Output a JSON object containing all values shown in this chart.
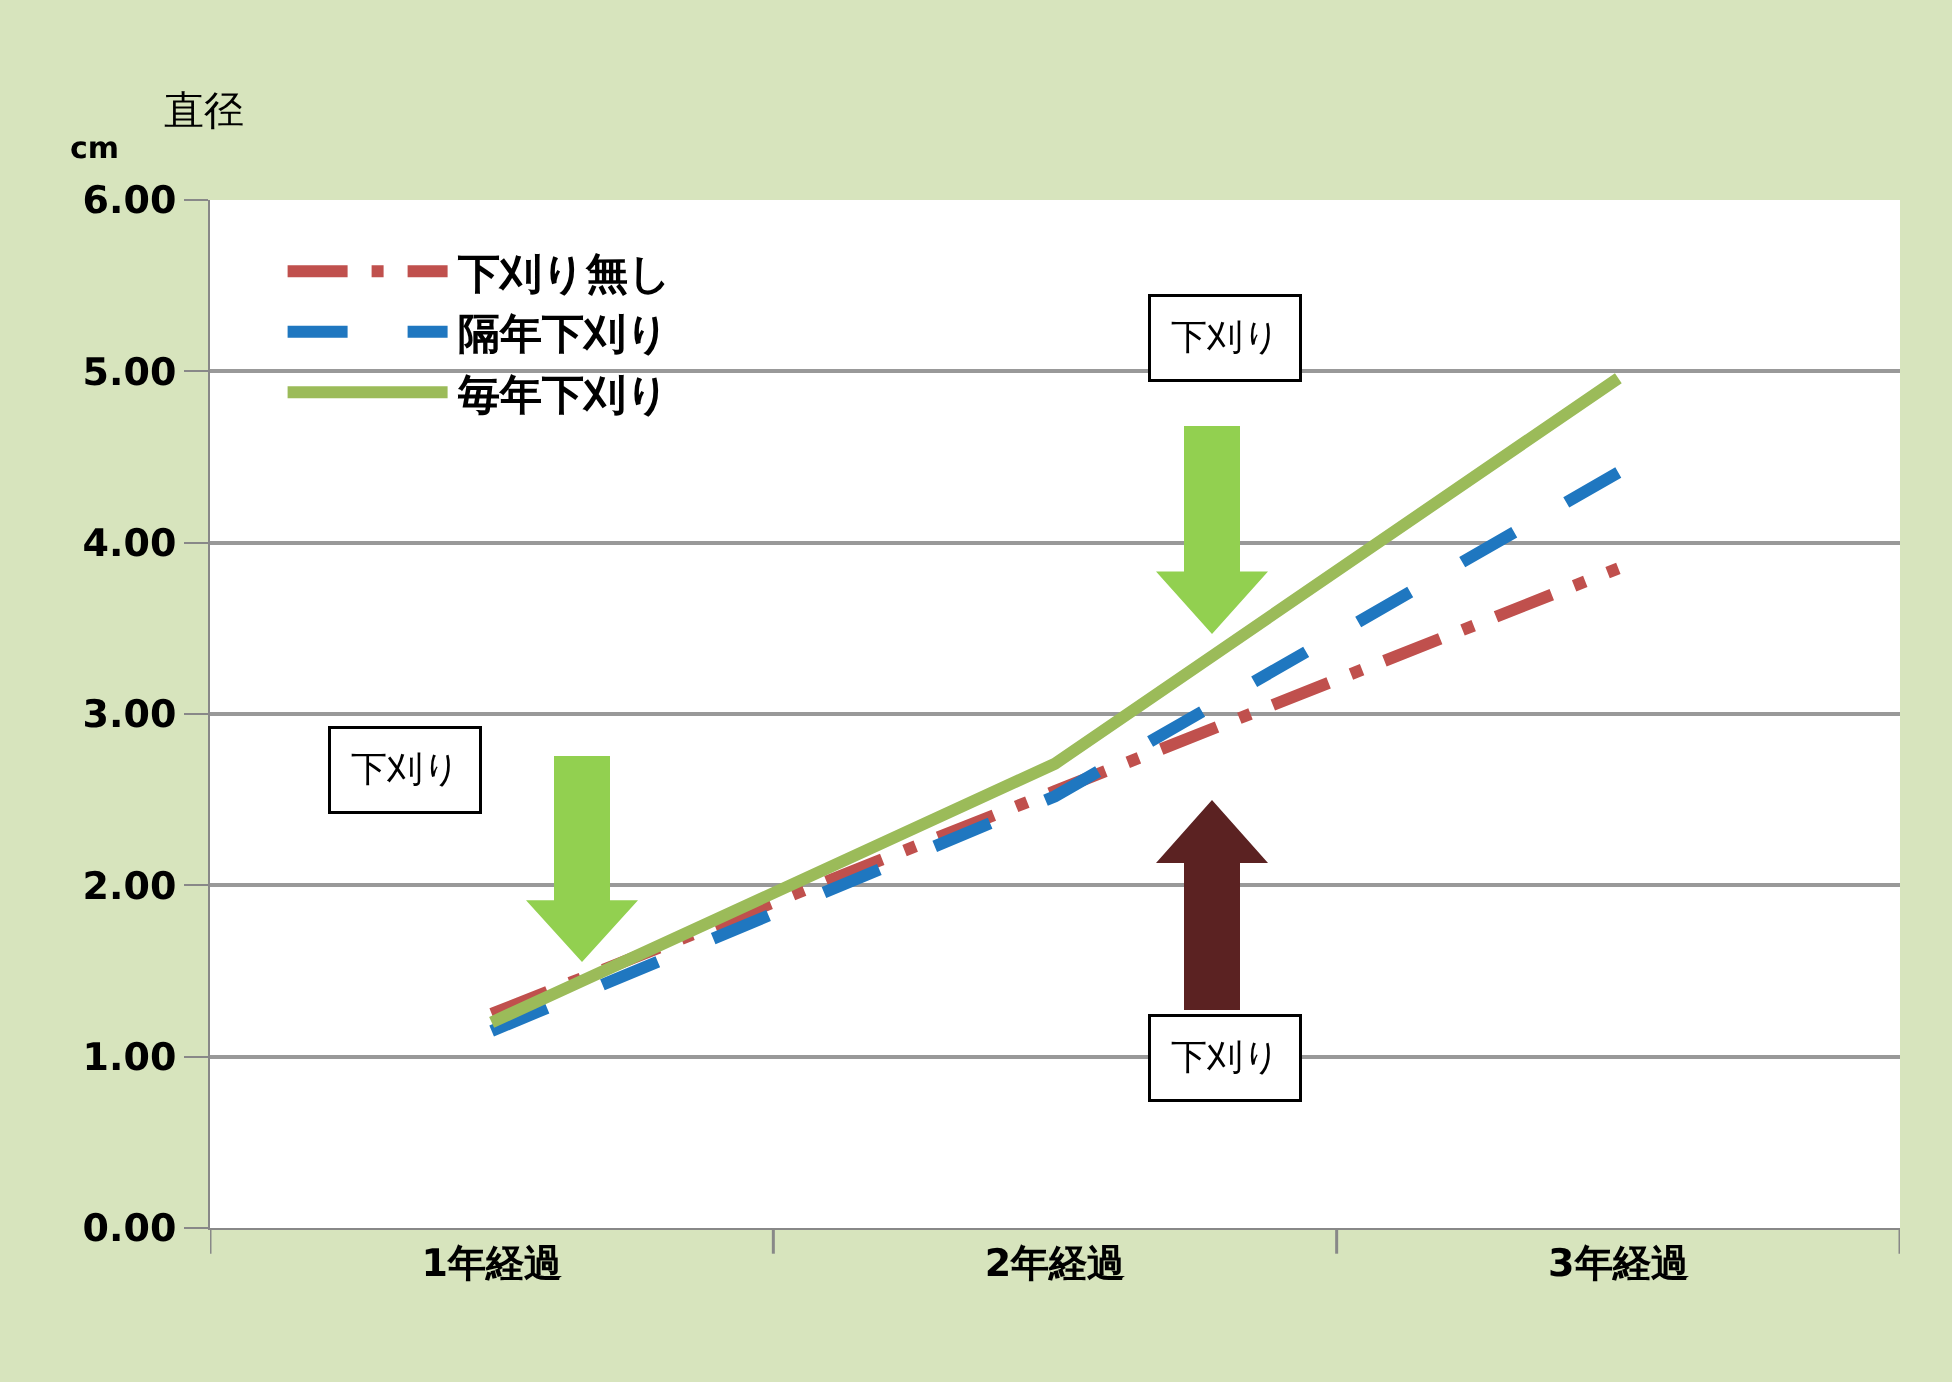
{
  "chart_data": {
    "type": "line",
    "ylabel": "直径",
    "categories": [
      "1年経過",
      "2年経過",
      "3年経過"
    ],
    "series": [
      {
        "name": "下刈り無し",
        "color": "#c0504d",
        "line_style": "dashdot",
        "values": [
          1.25,
          2.55,
          3.85
        ]
      },
      {
        "name": "隔年下刈り",
        "color": "#1f77c0",
        "line_style": "dashed",
        "values": [
          1.15,
          2.52,
          4.41
        ]
      },
      {
        "name": "毎年下刈り",
        "color": "#9bbb59",
        "line_style": "solid",
        "values": [
          1.2,
          2.71,
          4.96
        ]
      }
    ],
    "ylim": [
      0,
      6
    ],
    "yticks": [
      {
        "value": 0,
        "label": "0.00"
      },
      {
        "value": 1,
        "label": "1.00"
      },
      {
        "value": 2,
        "label": "2.00"
      },
      {
        "value": 3,
        "label": "3.00"
      },
      {
        "value": 4,
        "label": "4.00"
      },
      {
        "value": 5,
        "label": "5.00"
      },
      {
        "value": 6,
        "label": "6.00"
      }
    ],
    "grid": "y",
    "legend": "top left",
    "marker": "none",
    "annotations": [
      "cm",
      "下刈り",
      "下刈り",
      "下刈り"
    ]
  }
}
